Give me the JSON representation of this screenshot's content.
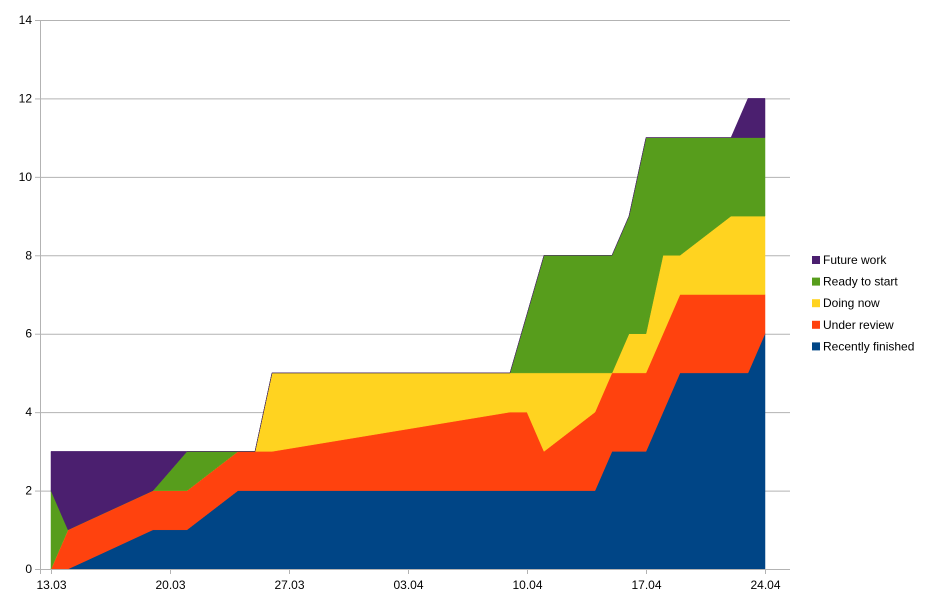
{
  "chart_data": {
    "type": "area",
    "stacked": true,
    "x_tick_labels": [
      "13.03",
      "20.03",
      "27.03",
      "03.04",
      "10.04",
      "17.04",
      "24.04"
    ],
    "y_ticks": [
      0,
      2,
      4,
      6,
      8,
      10,
      12,
      14
    ],
    "ylim": [
      0,
      14
    ],
    "grid": "horizontal",
    "legend_position": "right",
    "series_order": [
      "Recently finished",
      "Under review",
      "Doing now",
      "Ready to start",
      "Future work"
    ],
    "colors": {
      "Recently finished": "#004586",
      "Under review": "#ff420e",
      "Doing now": "#ffd320",
      "Ready to start": "#579d1c",
      "Future work": "#4b1f6f"
    },
    "points": [
      {
        "x": "13.03",
        "cumulative": [
          0,
          0,
          0,
          2,
          3
        ]
      },
      {
        "x": "14.03",
        "cumulative": [
          0,
          1,
          1,
          1,
          3
        ]
      },
      {
        "x": "15.03",
        "cumulative": [
          0.2,
          1.2,
          1.2,
          1.2,
          3
        ]
      },
      {
        "x": "19.03",
        "cumulative": [
          1,
          2,
          2,
          2,
          3
        ]
      },
      {
        "x": "20.03",
        "cumulative": [
          1,
          2,
          2,
          2.5,
          3
        ]
      },
      {
        "x": "21.03",
        "cumulative": [
          1,
          2,
          2,
          3,
          3
        ]
      },
      {
        "x": "24.03",
        "cumulative": [
          2,
          3,
          3,
          3,
          3
        ]
      },
      {
        "x": "25.03",
        "cumulative": [
          2,
          3,
          3,
          3,
          3
        ]
      },
      {
        "x": "26.03",
        "cumulative": [
          2,
          3,
          5,
          5,
          5
        ]
      },
      {
        "x": "09.04",
        "cumulative": [
          2,
          4,
          5,
          5,
          5
        ]
      },
      {
        "x": "10.04",
        "cumulative": [
          2,
          4,
          5,
          6.5,
          6.5
        ]
      },
      {
        "x": "11.04",
        "cumulative": [
          2,
          3,
          5,
          8,
          8
        ]
      },
      {
        "x": "14.04",
        "cumulative": [
          2,
          4,
          5,
          8,
          8
        ]
      },
      {
        "x": "15.04",
        "cumulative": [
          3,
          5,
          5,
          8,
          8
        ]
      },
      {
        "x": "16.04",
        "cumulative": [
          3,
          5,
          6,
          9,
          9
        ]
      },
      {
        "x": "17.04",
        "cumulative": [
          3,
          5,
          6,
          11,
          11
        ]
      },
      {
        "x": "18.04",
        "cumulative": [
          4,
          6,
          8,
          11,
          11
        ]
      },
      {
        "x": "19.04",
        "cumulative": [
          5,
          7,
          8,
          11,
          11
        ]
      },
      {
        "x": "22.04",
        "cumulative": [
          5,
          7,
          9,
          11,
          11
        ]
      },
      {
        "x": "23.04",
        "cumulative": [
          5,
          7,
          9,
          11,
          12
        ]
      },
      {
        "x": "24.04",
        "cumulative": [
          6,
          7,
          9,
          11,
          12
        ]
      }
    ],
    "legend": [
      "Future work",
      "Ready to start",
      "Doing now",
      "Under review",
      "Recently finished"
    ]
  }
}
